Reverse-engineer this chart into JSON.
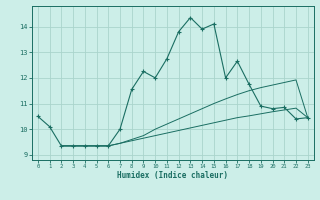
{
  "xlabel": "Humidex (Indice chaleur)",
  "xlim": [
    -0.5,
    23.5
  ],
  "ylim": [
    8.8,
    14.8
  ],
  "yticks": [
    9,
    10,
    11,
    12,
    13,
    14
  ],
  "xticks": [
    0,
    1,
    2,
    3,
    4,
    5,
    6,
    7,
    8,
    9,
    10,
    11,
    12,
    13,
    14,
    15,
    16,
    17,
    18,
    19,
    20,
    21,
    22,
    23
  ],
  "bg_color": "#cceee8",
  "line_color": "#1a6e62",
  "grid_color": "#aad4cc",
  "line1_x": [
    0,
    1,
    2,
    3,
    4,
    5,
    6,
    7,
    8,
    9,
    10,
    11,
    12,
    13,
    14,
    15,
    16,
    17,
    18,
    19,
    20,
    21,
    22,
    23
  ],
  "line1_y": [
    10.5,
    10.1,
    9.35,
    9.35,
    9.35,
    9.35,
    9.35,
    10.0,
    11.55,
    12.25,
    12.0,
    12.75,
    13.8,
    14.35,
    13.9,
    14.1,
    12.0,
    12.65,
    11.75,
    10.9,
    10.8,
    10.85,
    10.4,
    10.45
  ],
  "line2_x": [
    2,
    3,
    4,
    5,
    6,
    7,
    8,
    9,
    10,
    11,
    12,
    13,
    14,
    15,
    16,
    17,
    18,
    19,
    20,
    21,
    22,
    23
  ],
  "line2_y": [
    9.35,
    9.35,
    9.35,
    9.35,
    9.35,
    9.45,
    9.55,
    9.65,
    9.75,
    9.85,
    9.95,
    10.05,
    10.15,
    10.25,
    10.35,
    10.45,
    10.52,
    10.6,
    10.68,
    10.75,
    10.82,
    10.45
  ],
  "line3_x": [
    2,
    3,
    4,
    5,
    6,
    7,
    8,
    9,
    10,
    11,
    12,
    13,
    14,
    15,
    16,
    17,
    18,
    19,
    20,
    21,
    22,
    23
  ],
  "line3_y": [
    9.35,
    9.35,
    9.35,
    9.35,
    9.35,
    9.45,
    9.6,
    9.75,
    10.0,
    10.2,
    10.4,
    10.6,
    10.8,
    11.0,
    11.18,
    11.35,
    11.5,
    11.62,
    11.72,
    11.82,
    11.92,
    10.45
  ]
}
